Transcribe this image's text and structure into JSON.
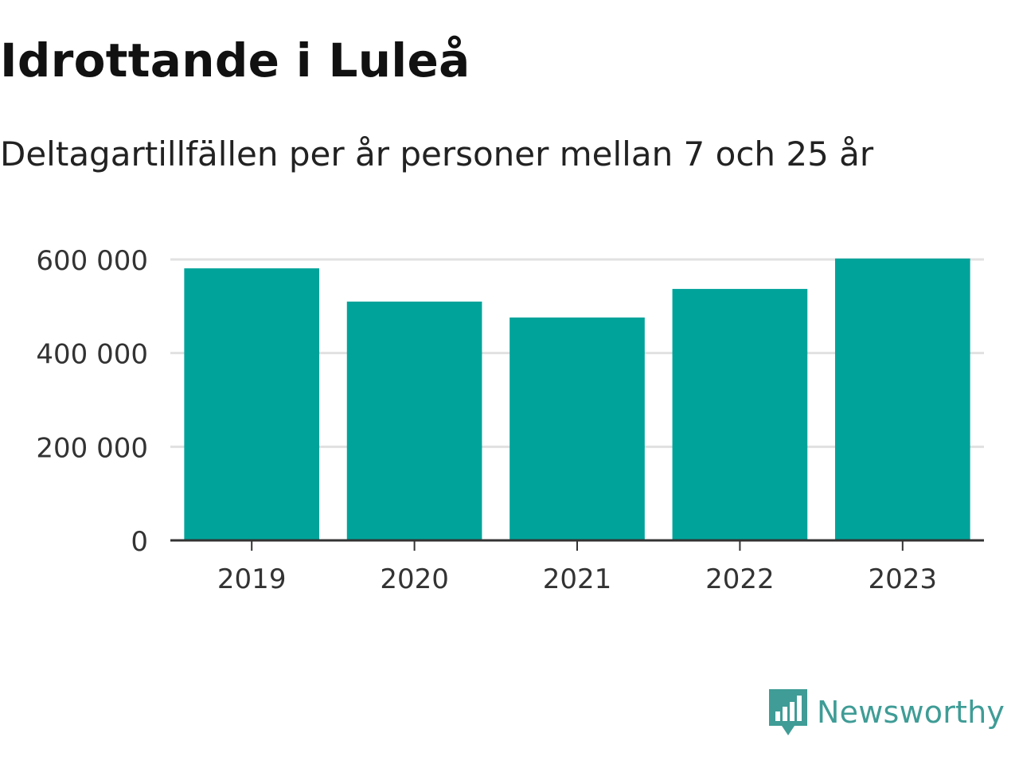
{
  "chart_data": {
    "type": "bar",
    "title": "Idrottande i Luleå",
    "subtitle": "Deltagartillfällen per år personer mellan 7 och 25 år",
    "categories": [
      "2019",
      "2020",
      "2021",
      "2022",
      "2023"
    ],
    "values": [
      581000,
      510000,
      476000,
      537000,
      602000
    ],
    "ylim": [
      0,
      600000
    ],
    "yticks": [
      0,
      200000,
      400000,
      600000
    ],
    "ytick_labels": [
      "0",
      "200 000",
      "400 000",
      "600 000"
    ],
    "xlabel": "",
    "ylabel": "",
    "grid": true,
    "bar_color": "#00a39a",
    "gridline_color": "#e1e1e1",
    "axis_color": "#333333"
  },
  "brand": {
    "name": "Newsworthy",
    "color": "#3f9c96",
    "icon": "newsworthy-logo-icon"
  }
}
